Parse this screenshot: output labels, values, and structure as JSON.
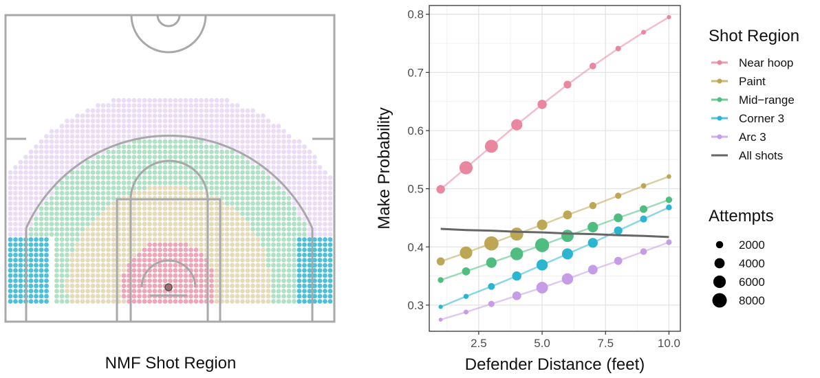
{
  "colors": {
    "near_hoop": "#E8879F",
    "paint": "#BDA654",
    "mid_range": "#4FBD7F",
    "corner_3": "#2BB5D1",
    "arc_3": "#C79CE6",
    "all_shots": "#707070",
    "court_lines": "#A8A8A8"
  },
  "court": {
    "caption": "NMF Shot Region"
  },
  "chart_data": {
    "type": "line",
    "xlabel": "Defender Distance (feet)",
    "ylabel": "Make Probability",
    "xlim": [
      0.55,
      10.45
    ],
    "ylim": [
      0.255,
      0.815
    ],
    "x_ticks": [
      2.5,
      5.0,
      7.5,
      10.0
    ],
    "x_tick_labels": [
      "2.5",
      "5.0",
      "7.5",
      "10.0"
    ],
    "y_ticks": [
      0.3,
      0.4,
      0.5,
      0.6,
      0.7,
      0.8
    ],
    "y_tick_labels": [
      "0.3",
      "0.4",
      "0.5",
      "0.6",
      "0.7",
      "0.8"
    ],
    "grid": true,
    "x": [
      1,
      2,
      3,
      4,
      5,
      6,
      7,
      8,
      9,
      10
    ],
    "series": [
      {
        "name": "Near hoop",
        "color_key": "near_hoop",
        "values": [
          0.499,
          0.536,
          0.573,
          0.61,
          0.645,
          0.679,
          0.711,
          0.741,
          0.769,
          0.795
        ],
        "attempts": [
          2800,
          6700,
          6500,
          4800,
          3300,
          2300,
          1700,
          1200,
          900,
          700
        ]
      },
      {
        "name": "Paint",
        "color_key": "paint",
        "values": [
          0.375,
          0.39,
          0.406,
          0.422,
          0.438,
          0.455,
          0.471,
          0.488,
          0.505,
          0.521
        ],
        "attempts": [
          2500,
          6000,
          7800,
          6500,
          4200,
          3000,
          2000,
          1500,
          1100,
          800
        ]
      },
      {
        "name": "Mid−range",
        "color_key": "mid_range",
        "values": [
          0.343,
          0.358,
          0.373,
          0.388,
          0.403,
          0.419,
          0.434,
          0.45,
          0.465,
          0.481
        ],
        "attempts": [
          1300,
          2500,
          4200,
          6200,
          7500,
          5800,
          4200,
          3000,
          2200,
          1600
        ]
      },
      {
        "name": "Corner 3",
        "color_key": "corner_3",
        "values": [
          0.297,
          0.315,
          0.332,
          0.35,
          0.369,
          0.388,
          0.407,
          0.428,
          0.448,
          0.468
        ],
        "attempts": [
          700,
          1000,
          1800,
          3300,
          4800,
          4700,
          3700,
          2700,
          1900,
          1300
        ]
      },
      {
        "name": "Arc 3",
        "color_key": "arc_3",
        "values": [
          0.275,
          0.288,
          0.302,
          0.316,
          0.33,
          0.345,
          0.361,
          0.376,
          0.392,
          0.408
        ],
        "attempts": [
          600,
          900,
          1500,
          3000,
          5200,
          4900,
          3500,
          2500,
          1700,
          1200
        ]
      },
      {
        "name": "All shots",
        "color_key": "all_shots",
        "values": [
          0.431,
          0.429,
          0.428,
          0.426,
          0.425,
          0.423,
          0.422,
          0.42,
          0.419,
          0.417
        ],
        "line_only": true
      }
    ],
    "legend": {
      "placement": "right",
      "color_title": "Shot Region",
      "size_title": "Attempts",
      "size_labels": [
        "2000",
        "4000",
        "6000",
        "8000"
      ],
      "size_values": [
        2000,
        4000,
        6000,
        8000
      ]
    }
  }
}
